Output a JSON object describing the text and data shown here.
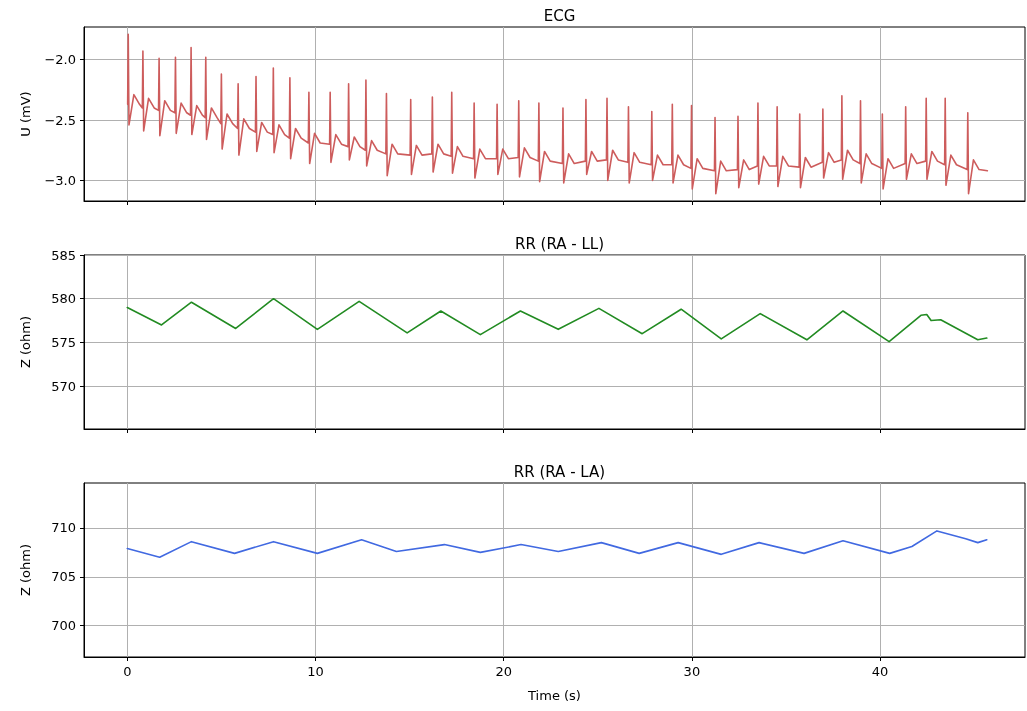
{
  "chart_data": [
    {
      "type": "line",
      "title": "ECG",
      "ylabel": "U (mV)",
      "xlim": [
        -2.3,
        47.7
      ],
      "xticks": [
        0,
        10,
        20,
        30,
        40
      ],
      "ylim": [
        -3.17,
        -1.73
      ],
      "yticks": [
        {
          "value": -3,
          "label": "−3.0"
        },
        {
          "value": -2.5,
          "label": "−2.5"
        },
        {
          "value": -2,
          "label": "−2.0"
        }
      ],
      "grid": true,
      "marker": "none",
      "line_style": "solid",
      "tick_labels": "y",
      "series": [
        {
          "color": "#cd5c5c",
          "x": [
            0.02,
            0.05,
            0.09,
            0.35,
            0.65,
            0.8,
            0.83,
            0.87,
            1.13,
            1.43,
            1.66,
            1.69,
            1.73,
            1.99,
            2.29,
            2.53,
            2.56,
            2.6,
            2.86,
            3.16,
            3.36,
            3.39,
            3.43,
            3.69,
            3.99,
            4.14,
            4.17,
            4.21,
            4.47,
            4.77,
            4.97,
            5.0,
            5.04,
            5.3,
            5.6,
            5.86,
            5.89,
            5.93,
            6.19,
            6.49,
            6.81,
            6.84,
            6.88,
            7.14,
            7.44,
            7.73,
            7.76,
            7.8,
            8.06,
            8.36,
            8.61,
            8.64,
            8.68,
            8.94,
            9.24,
            9.62,
            9.65,
            9.69,
            9.95,
            10.25,
            10.75,
            10.78,
            10.82,
            11.08,
            11.38,
            11.73,
            11.76,
            11.8,
            12.06,
            12.36,
            12.65,
            12.68,
            12.72,
            12.98,
            13.28,
            13.74,
            13.77,
            13.81,
            14.07,
            14.37,
            15.03,
            15.06,
            15.1,
            15.36,
            15.66,
            16.18,
            16.21,
            16.25,
            16.51,
            16.81,
            17.21,
            17.24,
            17.28,
            17.54,
            17.84,
            18.4,
            18.43,
            18.47,
            18.73,
            19.03,
            19.62,
            19.65,
            19.69,
            19.95,
            20.25,
            20.77,
            20.8,
            20.84,
            21.1,
            21.4,
            21.84,
            21.87,
            21.91,
            22.17,
            22.47,
            23.12,
            23.15,
            23.19,
            23.45,
            23.75,
            24.34,
            24.37,
            24.41,
            24.67,
            24.97,
            25.46,
            25.49,
            25.53,
            25.79,
            26.09,
            26.6,
            26.63,
            26.67,
            26.93,
            27.23,
            27.84,
            27.87,
            27.91,
            28.17,
            28.47,
            28.93,
            28.96,
            29.0,
            29.26,
            29.56,
            29.95,
            29.98,
            30.02,
            30.28,
            30.58,
            31.2,
            31.23,
            31.27,
            31.53,
            31.83,
            32.42,
            32.45,
            32.49,
            32.75,
            33.05,
            33.48,
            33.51,
            33.55,
            33.81,
            34.11,
            34.5,
            34.53,
            34.57,
            34.83,
            35.13,
            35.7,
            35.73,
            35.77,
            36.03,
            36.33,
            36.93,
            36.96,
            37.0,
            37.26,
            37.56,
            37.94,
            37.97,
            38.01,
            38.27,
            38.57,
            38.93,
            38.96,
            39.0,
            39.26,
            39.56,
            40.09,
            40.12,
            40.16,
            40.42,
            40.72,
            41.33,
            41.36,
            41.4,
            41.66,
            41.96,
            42.42,
            42.45,
            42.49,
            42.75,
            43.05,
            43.43,
            43.46,
            43.5,
            43.76,
            44.06,
            44.63,
            44.66,
            44.7,
            44.96,
            45.26,
            45.7
          ],
          "values": [
            -2.37,
            -1.79,
            -2.54,
            -2.29,
            -2.37,
            -2.4,
            -1.93,
            -2.59,
            -2.32,
            -2.4,
            -2.42,
            -1.99,
            -2.63,
            -2.34,
            -2.42,
            -2.44,
            -1.98,
            -2.61,
            -2.36,
            -2.44,
            -2.46,
            -1.9,
            -2.62,
            -2.38,
            -2.46,
            -2.48,
            -1.98,
            -2.66,
            -2.4,
            -2.48,
            -2.53,
            -2.12,
            -2.74,
            -2.45,
            -2.53,
            -2.57,
            -2.2,
            -2.79,
            -2.49,
            -2.57,
            -2.6,
            -2.14,
            -2.76,
            -2.52,
            -2.6,
            -2.62,
            -2.07,
            -2.77,
            -2.54,
            -2.62,
            -2.65,
            -2.15,
            -2.82,
            -2.57,
            -2.65,
            -2.69,
            -2.27,
            -2.86,
            -2.61,
            -2.69,
            -2.7,
            -2.27,
            -2.85,
            -2.62,
            -2.7,
            -2.72,
            -2.2,
            -2.83,
            -2.64,
            -2.72,
            -2.75,
            -2.17,
            -2.88,
            -2.67,
            -2.75,
            -2.78,
            -2.28,
            -2.96,
            -2.7,
            -2.78,
            -2.79,
            -2.33,
            -2.95,
            -2.71,
            -2.79,
            -2.78,
            -2.31,
            -2.93,
            -2.7,
            -2.78,
            -2.8,
            -2.27,
            -2.94,
            -2.72,
            -2.8,
            -2.82,
            -2.36,
            -2.98,
            -2.74,
            -2.82,
            -2.82,
            -2.37,
            -2.95,
            -2.74,
            -2.82,
            -2.81,
            -2.34,
            -2.97,
            -2.73,
            -2.81,
            -2.84,
            -2.36,
            -3.01,
            -2.76,
            -2.84,
            -2.86,
            -2.4,
            -3.02,
            -2.78,
            -2.86,
            -2.84,
            -2.33,
            -2.95,
            -2.76,
            -2.84,
            -2.83,
            -2.32,
            -3.0,
            -2.75,
            -2.83,
            -2.85,
            -2.39,
            -3.02,
            -2.77,
            -2.85,
            -2.87,
            -2.43,
            -3.0,
            -2.79,
            -2.87,
            -2.87,
            -2.37,
            -3.02,
            -2.79,
            -2.87,
            -2.9,
            -2.38,
            -3.07,
            -2.82,
            -2.9,
            -2.92,
            -2.48,
            -3.11,
            -2.84,
            -2.92,
            -2.91,
            -2.47,
            -3.06,
            -2.83,
            -2.91,
            -2.88,
            -2.36,
            -3.03,
            -2.8,
            -2.88,
            -2.88,
            -2.39,
            -3.05,
            -2.8,
            -2.88,
            -2.89,
            -2.45,
            -3.06,
            -2.81,
            -2.89,
            -2.85,
            -2.41,
            -2.98,
            -2.77,
            -2.85,
            -2.83,
            -2.3,
            -2.99,
            -2.75,
            -2.83,
            -2.86,
            -2.34,
            -3.02,
            -2.78,
            -2.86,
            -2.9,
            -2.45,
            -3.07,
            -2.82,
            -2.9,
            -2.86,
            -2.39,
            -2.99,
            -2.78,
            -2.86,
            -2.84,
            -2.32,
            -2.99,
            -2.76,
            -2.84,
            -2.87,
            -2.32,
            -3.04,
            -2.79,
            -2.87,
            -2.91,
            -2.44,
            -3.11,
            -2.83,
            -2.91,
            -2.92
          ]
        }
      ]
    },
    {
      "type": "line",
      "title": "RR (RA - LL)",
      "ylabel": "Z (ohm)",
      "xlim": [
        -2.3,
        47.7
      ],
      "xticks": [
        0,
        10,
        20,
        30,
        40
      ],
      "ylim": [
        565.1,
        585
      ],
      "yticks": [
        570,
        575,
        580,
        585
      ],
      "grid": true,
      "marker": "none",
      "line_style": "solid",
      "tick_labels": "y",
      "series": [
        {
          "color": "#228b22",
          "x": [
            0,
            1.82,
            3.41,
            5.76,
            7.77,
            10.1,
            12.32,
            14.87,
            16.66,
            18.76,
            20.89,
            22.9,
            25.06,
            27.36,
            29.43,
            31.56,
            33.63,
            36.11,
            38.03,
            40.48,
            42.17,
            42.48,
            42.71,
            43.22,
            45.19,
            45.67
          ],
          "values": [
            579.0,
            577.0,
            579.6,
            576.6,
            580.0,
            576.5,
            579.7,
            576.1,
            578.6,
            575.9,
            578.6,
            576.5,
            578.9,
            576.0,
            578.8,
            575.4,
            578.3,
            575.3,
            578.6,
            575.1,
            578.1,
            578.2,
            577.5,
            577.6,
            575.3,
            575.5
          ]
        }
      ]
    },
    {
      "type": "line",
      "title": "RR (RA - LA)",
      "ylabel": "Z (ohm)",
      "xlabel": "Time (s)",
      "xlim": [
        -2.3,
        47.7
      ],
      "xticks": [
        0,
        10,
        20,
        30,
        40
      ],
      "ylim": [
        696.8,
        714.6
      ],
      "yticks": [
        700,
        705,
        710
      ],
      "grid": true,
      "marker": "none",
      "line_style": "solid",
      "series": [
        {
          "color": "#4169e1",
          "x": [
            0,
            1.72,
            3.41,
            5.7,
            7.77,
            10.1,
            12.45,
            14.3,
            16.85,
            18.76,
            20.92,
            22.9,
            25.19,
            27.2,
            29.27,
            31.56,
            33.57,
            35.96,
            38.03,
            40.51,
            41.69,
            43.02,
            44.55,
            45.19,
            45.67
          ],
          "values": [
            707.9,
            707.0,
            708.6,
            707.4,
            708.6,
            707.4,
            708.8,
            707.6,
            708.3,
            707.5,
            708.3,
            707.6,
            708.5,
            707.4,
            708.5,
            707.3,
            708.5,
            707.4,
            708.7,
            707.4,
            708.1,
            709.7,
            708.9,
            708.5,
            708.8
          ]
        }
      ]
    }
  ]
}
